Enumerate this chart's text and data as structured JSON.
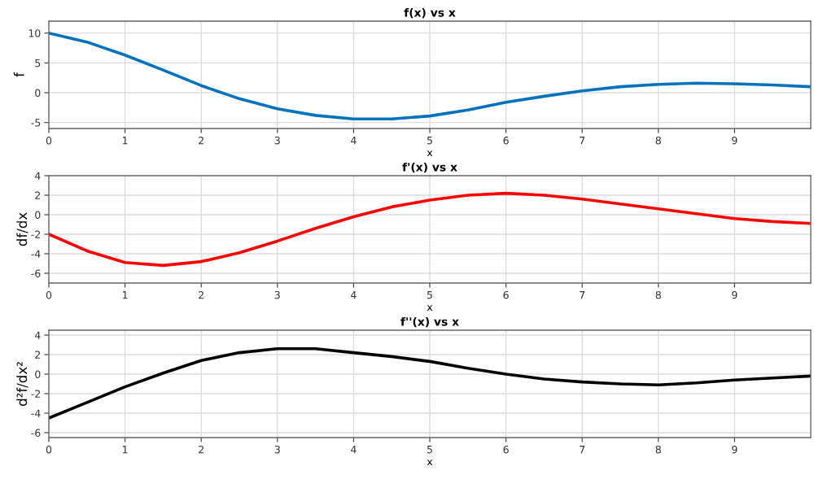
{
  "chart_data": [
    {
      "type": "line",
      "title": "f(x) vs x",
      "xlabel": "x",
      "ylabel": "f",
      "x": [
        0,
        0.5,
        1,
        1.5,
        2,
        2.5,
        3,
        3.5,
        4,
        4.5,
        5,
        5.5,
        6,
        6.5,
        7,
        7.5,
        8,
        8.5,
        9,
        9.5,
        10
      ],
      "xlim": [
        0,
        10
      ],
      "xticks": [
        0,
        1,
        2,
        3,
        4,
        5,
        6,
        7,
        8,
        9
      ],
      "ylim": [
        -6,
        12
      ],
      "yticks": [
        -5,
        0,
        5,
        10
      ],
      "grid": true,
      "series": [
        {
          "color": "#0072bd",
          "values": [
            10,
            8.5,
            6.3,
            3.8,
            1.2,
            -1.0,
            -2.7,
            -3.8,
            -4.4,
            -4.4,
            -3.9,
            -2.9,
            -1.6,
            -0.6,
            0.3,
            1.0,
            1.4,
            1.6,
            1.5,
            1.3,
            1.0
          ]
        }
      ]
    },
    {
      "type": "line",
      "title": "f'(x) vs x",
      "xlabel": "x",
      "ylabel": "df/dx",
      "x": [
        0,
        0.5,
        1,
        1.5,
        2,
        2.5,
        3,
        3.5,
        4,
        4.5,
        5,
        5.5,
        6,
        6.5,
        7,
        7.5,
        8,
        8.5,
        9,
        9.5,
        10
      ],
      "xlim": [
        0,
        10
      ],
      "xticks": [
        0,
        1,
        2,
        3,
        4,
        5,
        6,
        7,
        8,
        9
      ],
      "ylim": [
        -7,
        4
      ],
      "yticks": [
        -6,
        -4,
        -2,
        0,
        2,
        4
      ],
      "grid": true,
      "series": [
        {
          "color": "#ff0000",
          "values": [
            -2,
            -3.7,
            -4.9,
            -5.2,
            -4.8,
            -3.9,
            -2.7,
            -1.4,
            -0.2,
            0.8,
            1.5,
            2.0,
            2.2,
            2.0,
            1.6,
            1.1,
            0.6,
            0.1,
            -0.4,
            -0.7,
            -0.9
          ]
        }
      ]
    },
    {
      "type": "line",
      "title": "f''(x) vs x",
      "xlabel": "x",
      "ylabel": "d²f/dx²",
      "x": [
        0,
        0.5,
        1,
        1.5,
        2,
        2.5,
        3,
        3.5,
        4,
        4.5,
        5,
        5.5,
        6,
        6.5,
        7,
        7.5,
        8,
        8.5,
        9,
        9.5,
        10
      ],
      "xlim": [
        0,
        10
      ],
      "xticks": [
        0,
        1,
        2,
        3,
        4,
        5,
        6,
        7,
        8,
        9
      ],
      "ylim": [
        -6.5,
        4.5
      ],
      "yticks": [
        -6,
        -4,
        -2,
        0,
        2,
        4
      ],
      "grid": true,
      "series": [
        {
          "color": "#000000",
          "values": [
            -4.5,
            -2.9,
            -1.3,
            0.1,
            1.4,
            2.2,
            2.6,
            2.6,
            2.2,
            1.8,
            1.3,
            0.6,
            0,
            -0.5,
            -0.8,
            -1.0,
            -1.1,
            -0.9,
            -0.6,
            -0.4,
            -0.2
          ]
        }
      ]
    }
  ]
}
